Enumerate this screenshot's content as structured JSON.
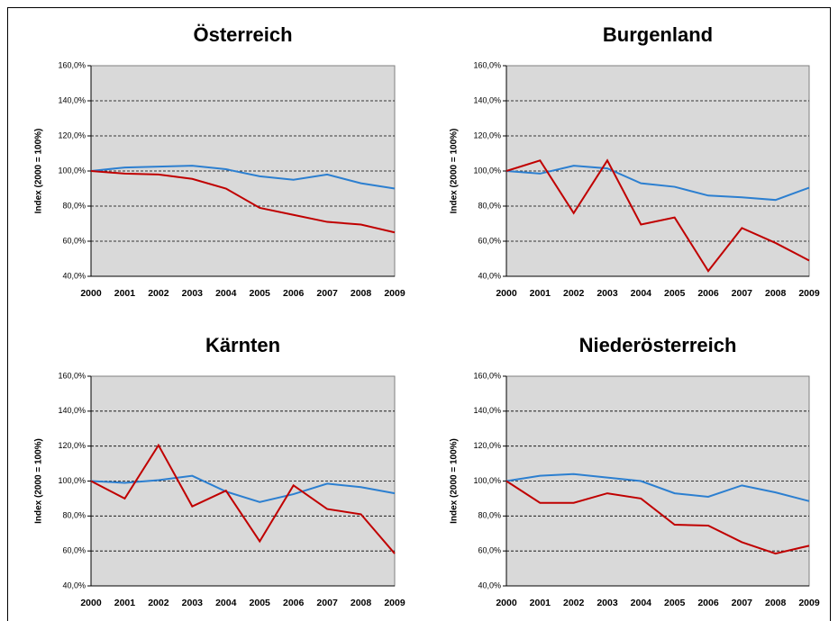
{
  "chart_data": [
    {
      "type": "line",
      "title": "Österreich",
      "ylabel": "Index (2000 = 100%)",
      "categories": [
        "2000",
        "2001",
        "2002",
        "2003",
        "2004",
        "2005",
        "2006",
        "2007",
        "2008",
        "2009"
      ],
      "series": [
        {
          "color": "#2c7fd0",
          "values": [
            100,
            102,
            102.5,
            103,
            101,
            97,
            95,
            98,
            93,
            90
          ]
        },
        {
          "color": "#c00000",
          "values": [
            100,
            98.5,
            98,
            95.5,
            90,
            79,
            75,
            71,
            69.5,
            65
          ]
        }
      ],
      "ylim": [
        40,
        160
      ],
      "yticks": [
        {
          "value": 40,
          "label": "40,0%"
        },
        {
          "value": 60,
          "label": "60,0%"
        },
        {
          "value": 80,
          "label": "80,0%"
        },
        {
          "value": 100,
          "label": "100,0%"
        },
        {
          "value": 120,
          "label": "120,0%"
        },
        {
          "value": 140,
          "label": "140,0%"
        },
        {
          "value": 160,
          "label": "160,0%"
        }
      ],
      "grid": true
    },
    {
      "type": "line",
      "title": "Burgenland",
      "ylabel": "Index (2000 = 100%)",
      "categories": [
        "2000",
        "2001",
        "2002",
        "2003",
        "2004",
        "2005",
        "2006",
        "2007",
        "2008",
        "2009"
      ],
      "series": [
        {
          "color": "#2c7fd0",
          "values": [
            100,
            98.5,
            103,
            101.5,
            93,
            91,
            86,
            85,
            83.5,
            90.5
          ]
        },
        {
          "color": "#c00000",
          "values": [
            100,
            106,
            76,
            106,
            69.5,
            73.5,
            43,
            67.5,
            59,
            49
          ]
        }
      ],
      "ylim": [
        40,
        160
      ],
      "yticks": [
        {
          "value": 40,
          "label": "40,0%"
        },
        {
          "value": 60,
          "label": "60,0%"
        },
        {
          "value": 80,
          "label": "80,0%"
        },
        {
          "value": 100,
          "label": "100,0%"
        },
        {
          "value": 120,
          "label": "120,0%"
        },
        {
          "value": 140,
          "label": "140,0%"
        },
        {
          "value": 160,
          "label": "160,0%"
        }
      ],
      "grid": true
    },
    {
      "type": "line",
      "title": "Kärnten",
      "ylabel": "Index (2000 = 100%)",
      "categories": [
        "2000",
        "2001",
        "2002",
        "2003",
        "2004",
        "2005",
        "2006",
        "2007",
        "2008",
        "2009"
      ],
      "series": [
        {
          "color": "#2c7fd0",
          "values": [
            100,
            99,
            100.5,
            103,
            94,
            88,
            92.5,
            98.5,
            96.5,
            93
          ]
        },
        {
          "color": "#c00000",
          "values": [
            100,
            90,
            120.5,
            85.5,
            94.5,
            65.5,
            97.5,
            84,
            81,
            58.5
          ]
        }
      ],
      "ylim": [
        40,
        160
      ],
      "yticks": [
        {
          "value": 40,
          "label": "40,0%"
        },
        {
          "value": 60,
          "label": "60,0%"
        },
        {
          "value": 80,
          "label": "80,0%"
        },
        {
          "value": 100,
          "label": "100,0%"
        },
        {
          "value": 120,
          "label": "120,0%"
        },
        {
          "value": 140,
          "label": "140,0%"
        },
        {
          "value": 160,
          "label": "160,0%"
        }
      ],
      "grid": true
    },
    {
      "type": "line",
      "title": "Niederösterreich",
      "ylabel": "Index (2000 = 100%)",
      "categories": [
        "2000",
        "2001",
        "2002",
        "2003",
        "2004",
        "2005",
        "2006",
        "2007",
        "2008",
        "2009"
      ],
      "series": [
        {
          "color": "#2c7fd0",
          "values": [
            100,
            103,
            104,
            102,
            100,
            93,
            91,
            97.5,
            93.5,
            88.5
          ]
        },
        {
          "color": "#c00000",
          "values": [
            100,
            87.5,
            87.5,
            93,
            90,
            75,
            74.5,
            65,
            58.5,
            63
          ]
        }
      ],
      "ylim": [
        40,
        160
      ],
      "yticks": [
        {
          "value": 40,
          "label": "40,0%"
        },
        {
          "value": 60,
          "label": "60,0%"
        },
        {
          "value": 80,
          "label": "80,0%"
        },
        {
          "value": 100,
          "label": "100,0%"
        },
        {
          "value": 120,
          "label": "120,0%"
        },
        {
          "value": 140,
          "label": "140,0%"
        },
        {
          "value": 160,
          "label": "160,0%"
        }
      ],
      "grid": true
    }
  ]
}
